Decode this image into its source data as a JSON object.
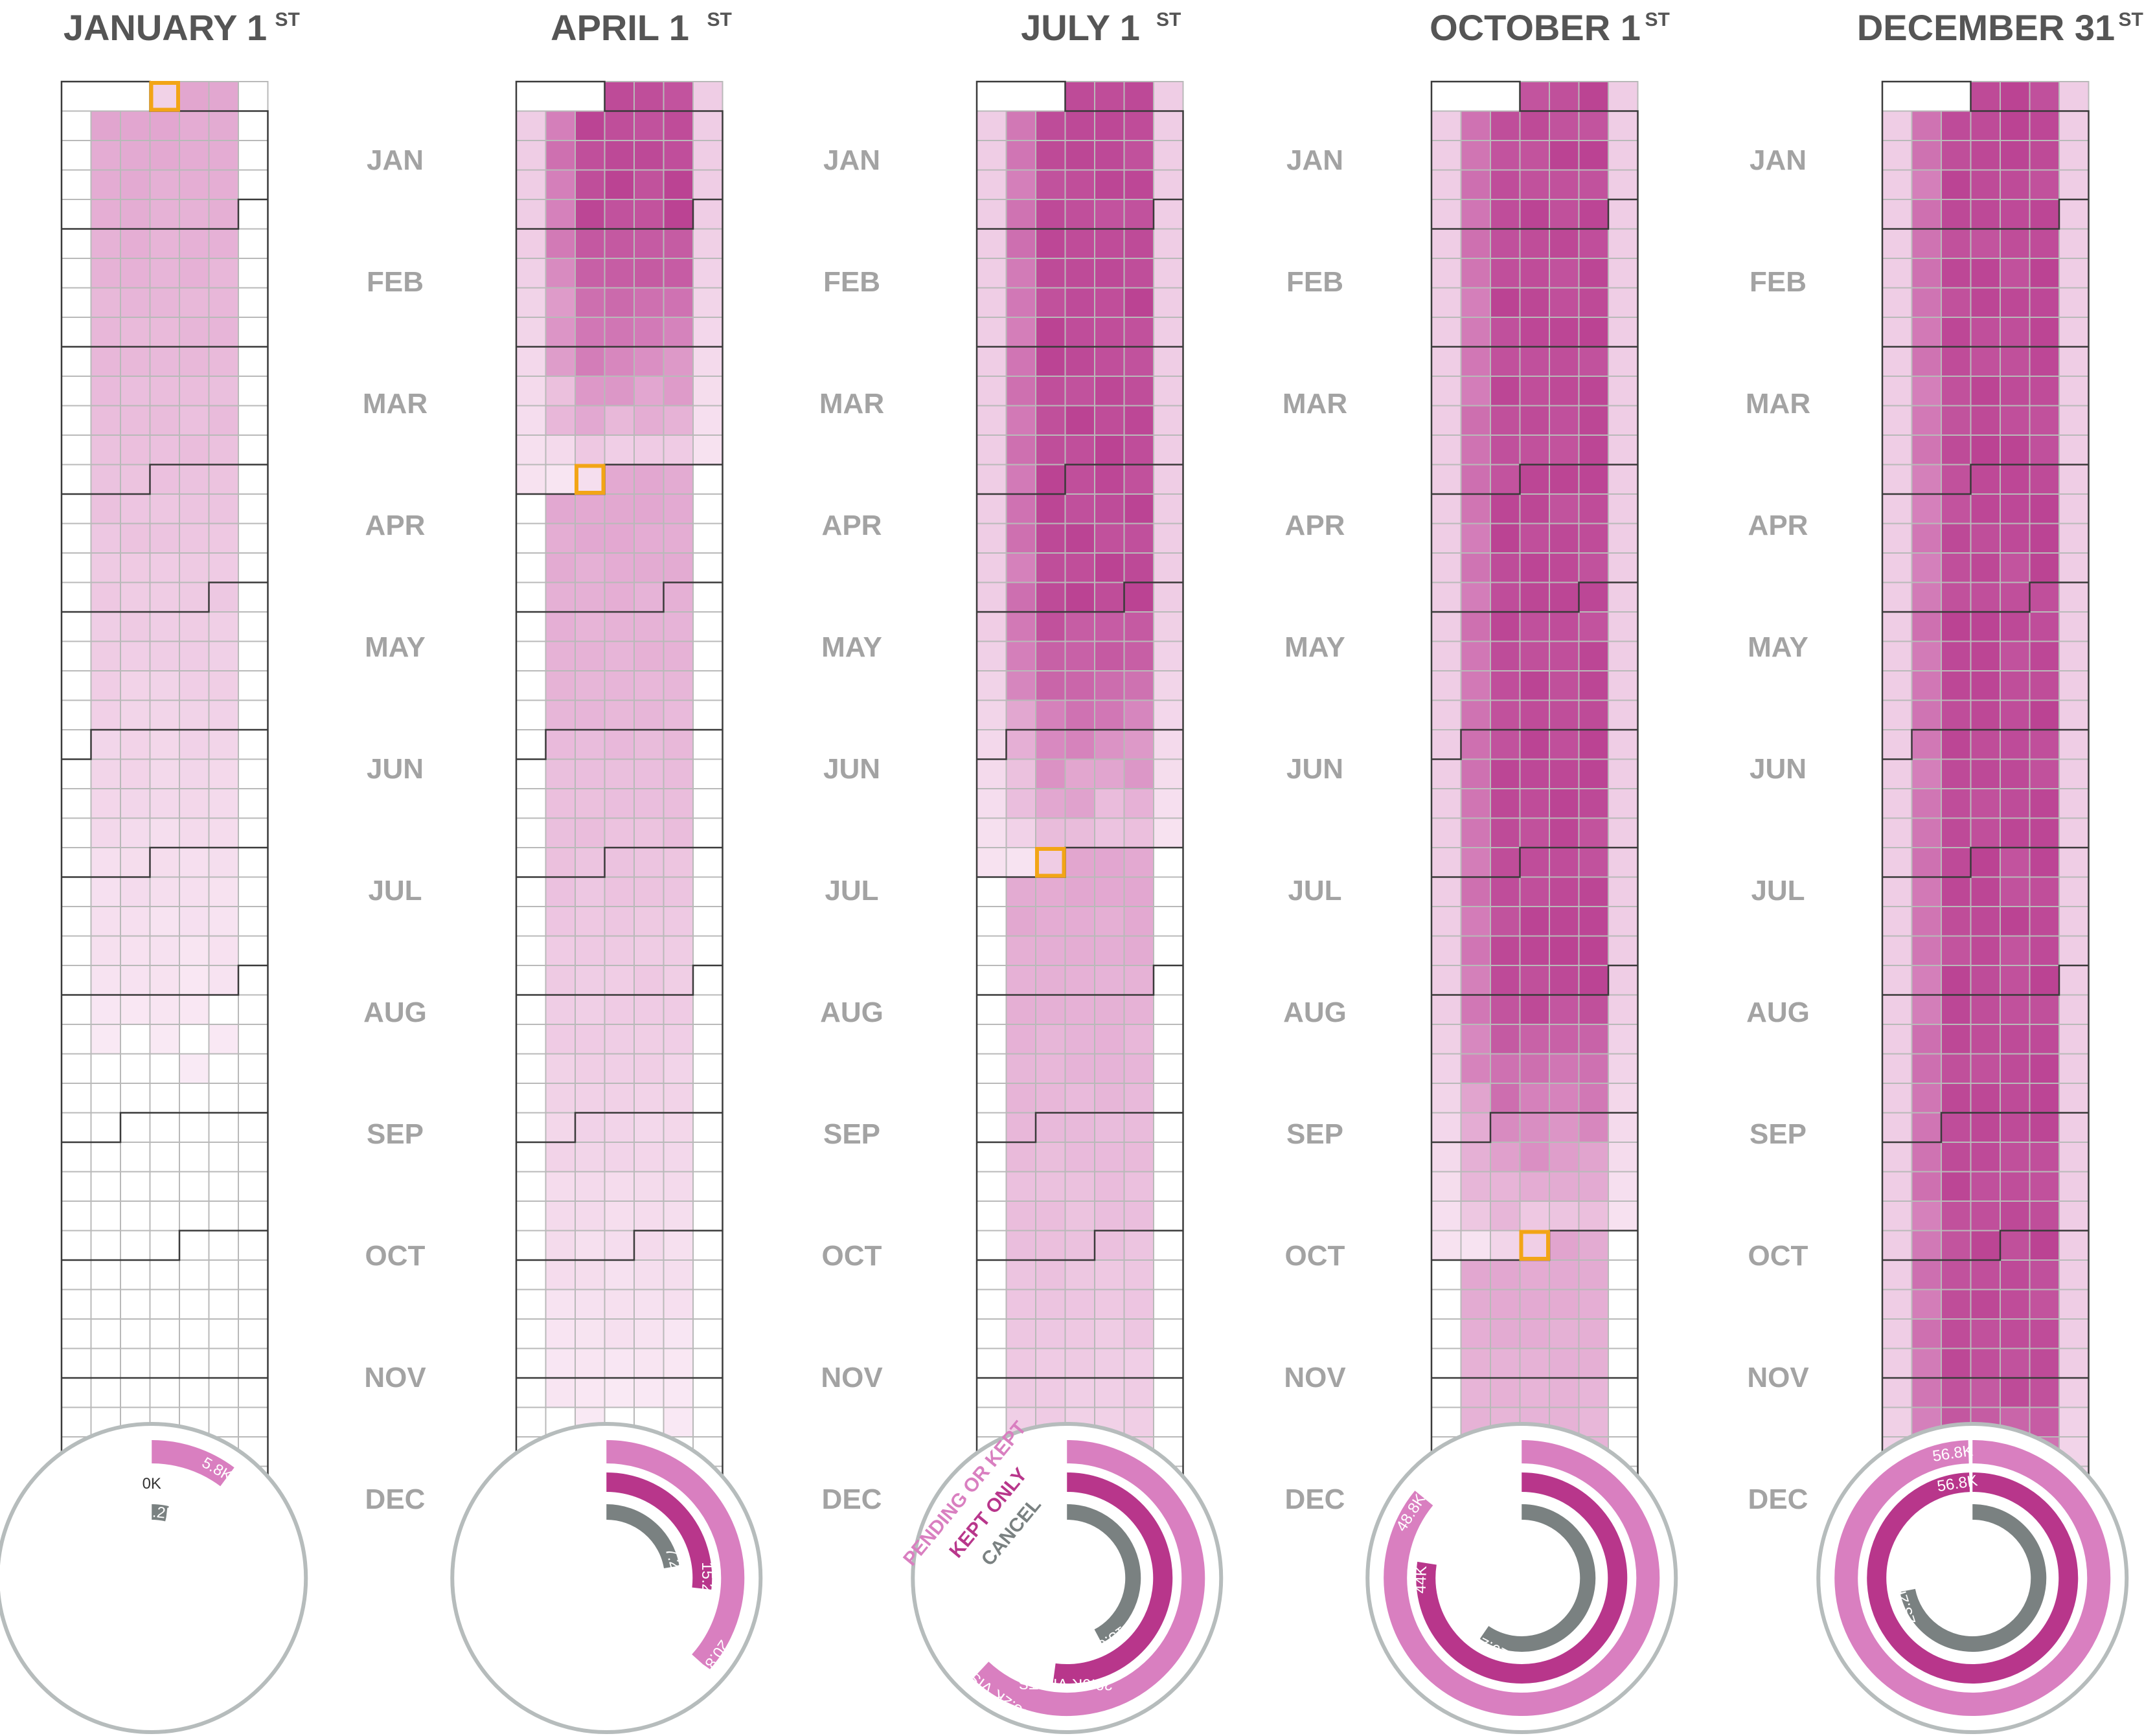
{
  "colors": {
    "pending_or_kept": "#d97fc0",
    "kept_only": "#b8368b",
    "cancel": "#7a8181",
    "grid_line": "#b9b9b9",
    "month_border": "#3a3a3a",
    "highlight": "#f2a516",
    "circle_border": "#b6bcbc",
    "title": "#555555",
    "month_label": "#a3a3a3"
  },
  "months": [
    "JAN",
    "FEB",
    "MAR",
    "APR",
    "MAY",
    "JUN",
    "JUL",
    "AUG",
    "SEP",
    "OCT",
    "NOV",
    "DEC"
  ],
  "legend": {
    "pending_or_kept": "PENDING OR KEPT",
    "kept_only": "KEPT ONLY",
    "cancel": "CANCEL"
  },
  "panels": [
    {
      "title": "JANUARY 1",
      "title_suffix": "ST",
      "filled_through_day": 1,
      "highlight_day": 1,
      "rings": {
        "pending_or_kept": {
          "value": 5800,
          "label": "5.8K"
        },
        "kept_only": {
          "value": 0,
          "label": "0K"
        },
        "cancel": {
          "value": 1200,
          "label": "1.2K"
        }
      }
    },
    {
      "title": "APRIL 1",
      "title_suffix": "ST",
      "filled_through_day": 91,
      "highlight_day": 91,
      "rings": {
        "pending_or_kept": {
          "value": 20800,
          "label": "20.8K"
        },
        "kept_only": {
          "value": 15200,
          "label": "15.2K"
        },
        "cancel": {
          "value": 7200,
          "label": "7.2K"
        }
      }
    },
    {
      "title": "JULY 1",
      "title_suffix": "ST",
      "filled_through_day": 182,
      "highlight_day": 182,
      "rings": {
        "pending_or_kept": {
          "value": 35200,
          "label": "35.2K VISITS"
        },
        "kept_only": {
          "value": 29600,
          "label": "29.6K VISITS"
        },
        "cancel": {
          "value": 13600,
          "label": "13.6K"
        }
      }
    },
    {
      "title": "OCTOBER 1",
      "title_suffix": "ST",
      "filled_through_day": 274,
      "highlight_day": 274,
      "rings": {
        "pending_or_kept": {
          "value": 48800,
          "label": "48.8K"
        },
        "kept_only": {
          "value": 44000,
          "label": "44K"
        },
        "cancel": {
          "value": 19200,
          "label": "19.2K"
        }
      }
    },
    {
      "title": "DECEMBER 31",
      "title_suffix": "ST",
      "filled_through_day": 365,
      "highlight_day": null,
      "rings": {
        "pending_or_kept": {
          "value": 56800,
          "label": "56.8K"
        },
        "kept_only": {
          "value": 56800,
          "label": "56.8K"
        },
        "cancel": {
          "value": 23200,
          "label": "23.2K"
        }
      }
    }
  ]
}
